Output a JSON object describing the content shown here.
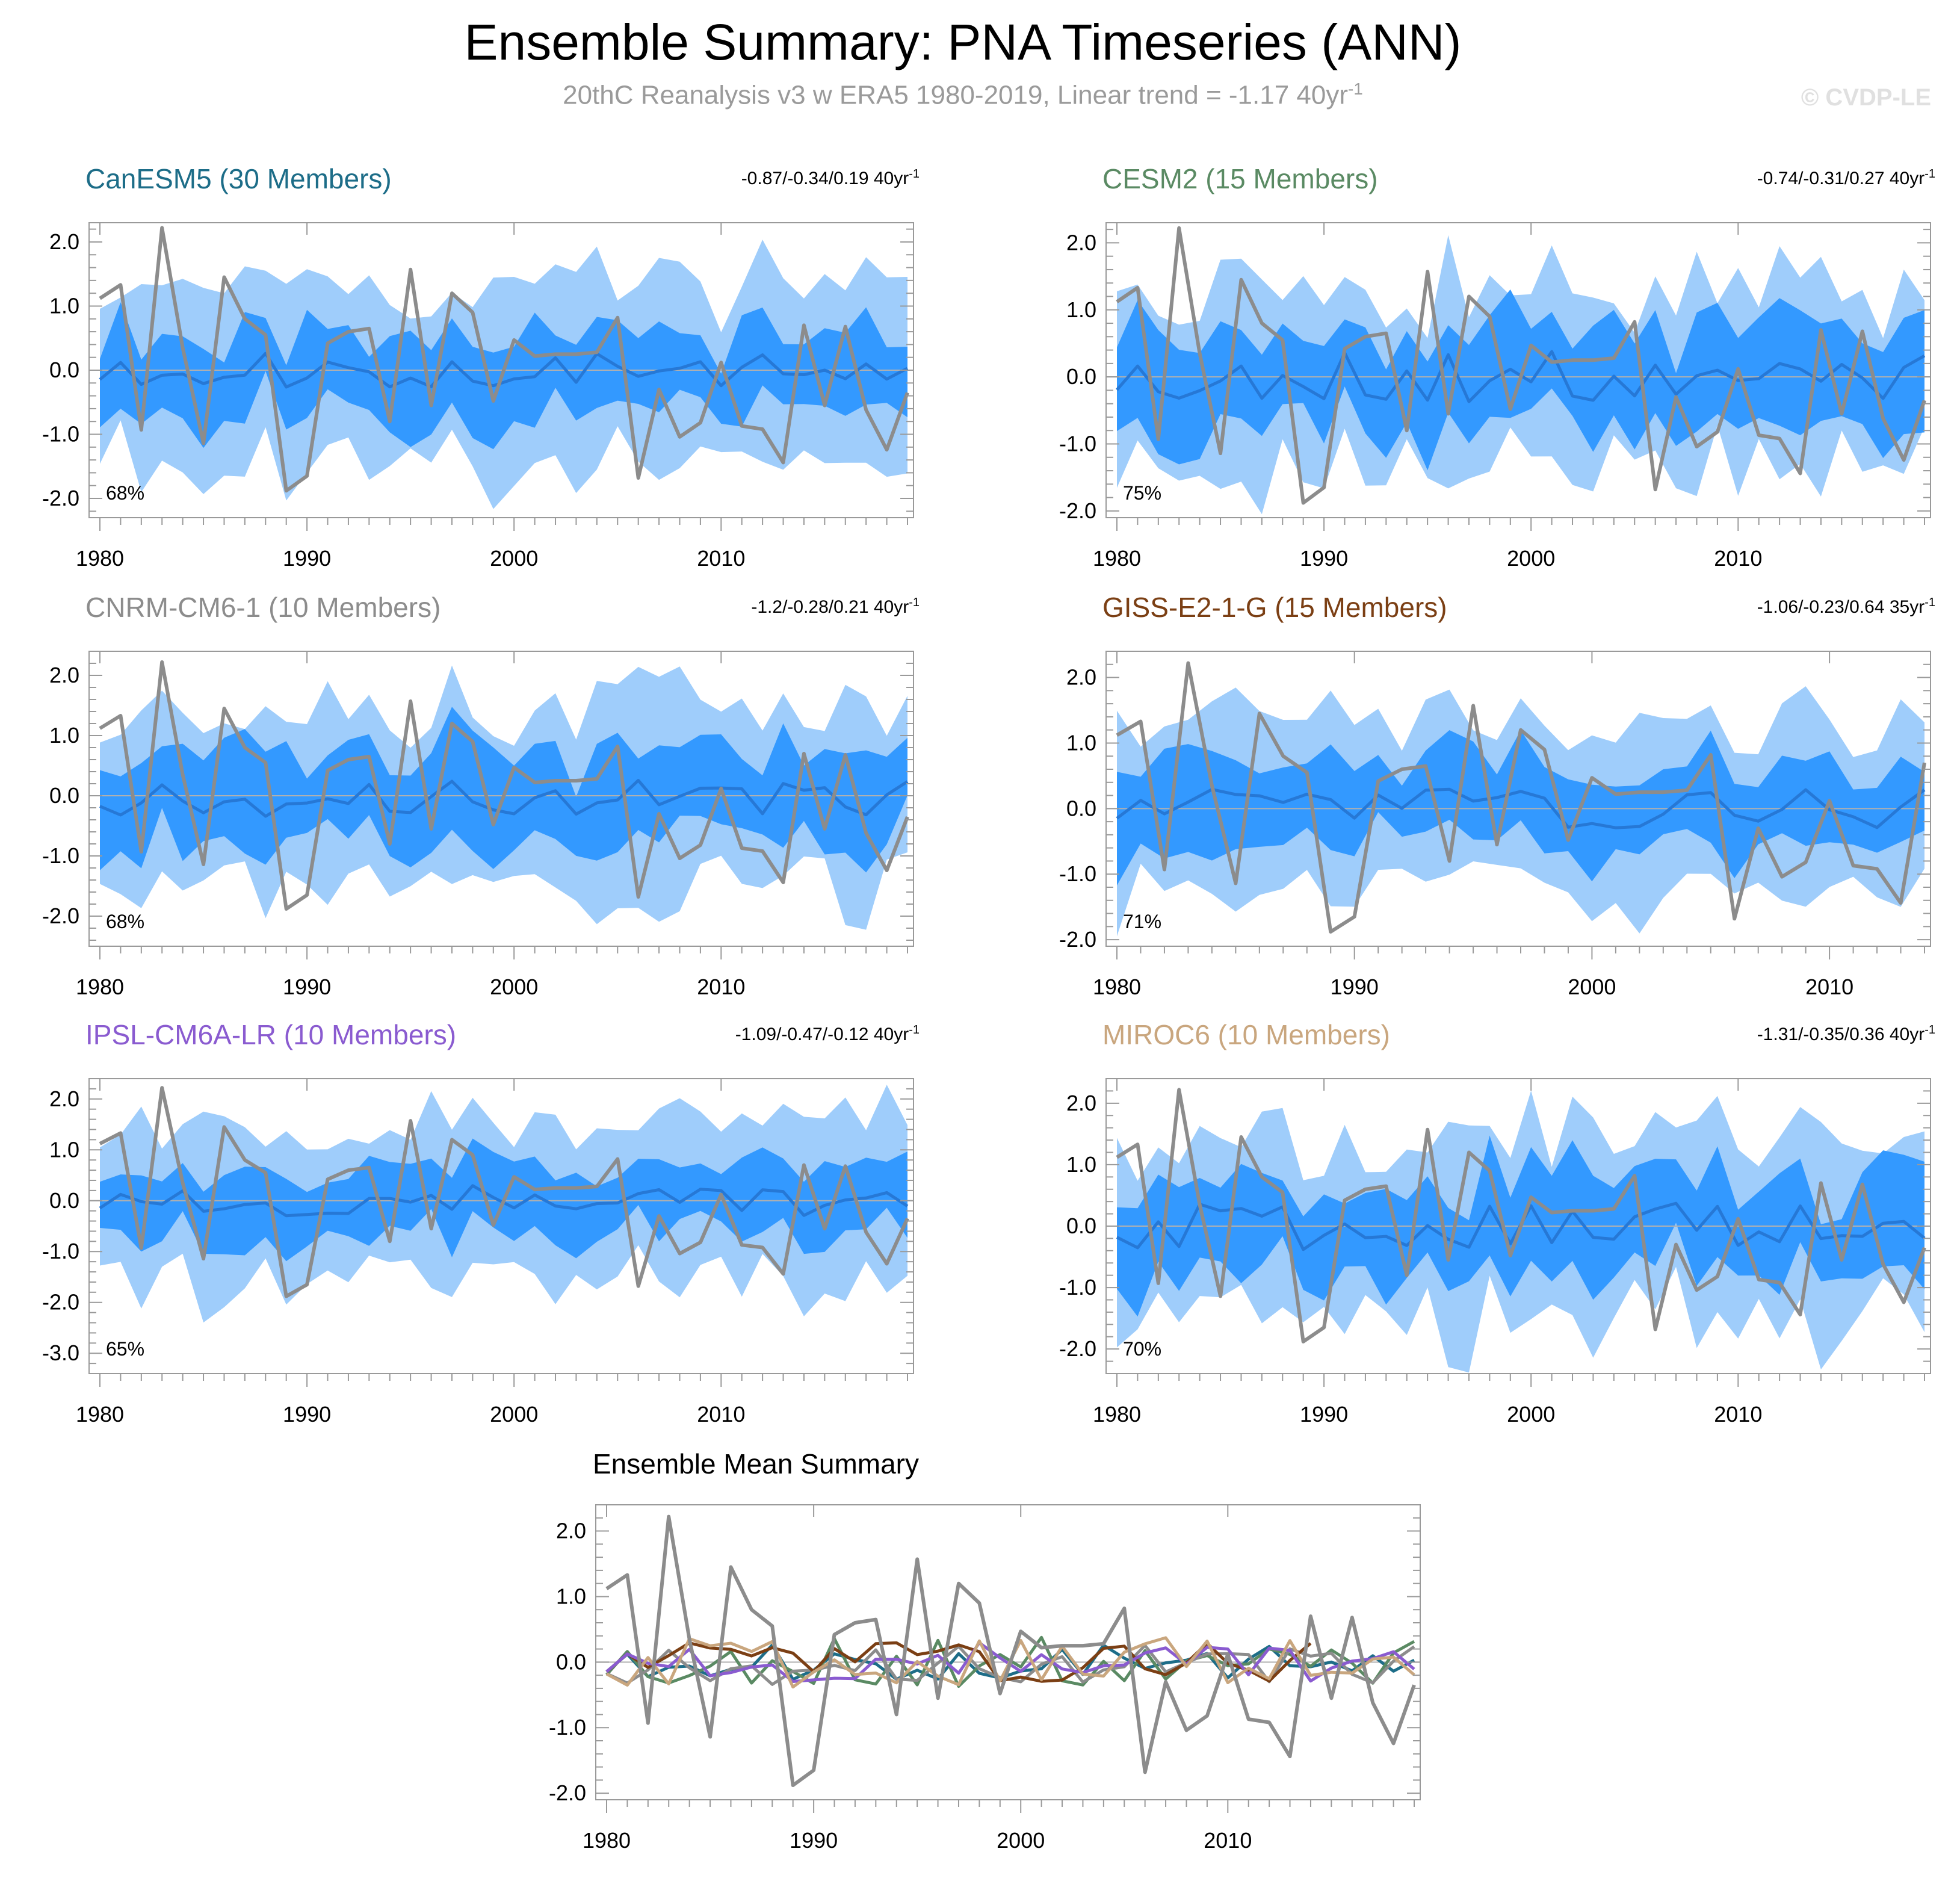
{
  "title": "Ensemble Summary: PNA Timeseries (ANN)",
  "subtitle": "20thC Reanalysis v3 w ERA5 1980-2019, Linear trend = -1.17 40yr",
  "subtitle_sup": "-1",
  "watermark": "© CVDP-LE",
  "colors": {
    "obs": "#8c8c8c",
    "outer_band": "#9fcdfb",
    "inner_band": "#3399ff",
    "ens_mean": "#2678d6",
    "zero_line": "#b0b0b0"
  },
  "chart_data": [
    {
      "type": "area",
      "title": "CanESM5 (30 Members)",
      "title_color": "#1d6d88",
      "trend_text": "-0.87/-0.34/0.19 40yr",
      "trend_sup": "-1",
      "percent_label": "68%",
      "x_range": [
        1980,
        2019
      ],
      "ylim": [
        -2.3,
        2.3
      ],
      "yticks": [
        2.0,
        1.0,
        0.0,
        -1.0,
        -2.0
      ],
      "ytick_labels": [
        "2.0",
        "1.0",
        "0.0",
        "-1.0",
        "-2.0"
      ],
      "xticks": [
        1980,
        1990,
        2000,
        2010
      ],
      "xtick_labels": [
        "1980",
        "1990",
        "2000",
        "2010"
      ],
      "mean_amp": 0.28,
      "inner_width": 0.65,
      "outer_width": 1.35,
      "seed": 11
    },
    {
      "type": "area",
      "title": "CESM2 (15 Members)",
      "title_color": "#5a8a63",
      "trend_text": "-0.74/-0.31/0.27 40yr",
      "trend_sup": "-1",
      "percent_label": "75%",
      "x_range": [
        1980,
        2019
      ],
      "ylim": [
        -2.1,
        2.3
      ],
      "yticks": [
        2.0,
        1.0,
        0.0,
        -1.0,
        -2.0
      ],
      "ytick_labels": [
        "2.0",
        "1.0",
        "0.0",
        "-1.0",
        "-2.0"
      ],
      "xticks": [
        1980,
        1990,
        2000,
        2010
      ],
      "xtick_labels": [
        "1980",
        "1990",
        "2000",
        "2010"
      ],
      "mean_amp": 0.38,
      "inner_width": 0.7,
      "outer_width": 1.4,
      "seed": 23
    },
    {
      "type": "area",
      "title": "CNRM-CM6-1 (10 Members)",
      "title_color": "#8c8c8c",
      "trend_text": "-1.2/-0.28/0.21 40yr",
      "trend_sup": "-1",
      "percent_label": "68%",
      "x_range": [
        1980,
        2019
      ],
      "ylim": [
        -2.5,
        2.4
      ],
      "yticks": [
        2.0,
        1.0,
        0.0,
        -1.0,
        -2.0
      ],
      "ytick_labels": [
        "2.0",
        "1.0",
        "0.0",
        "-1.0",
        "-2.0"
      ],
      "xticks": [
        1980,
        1990,
        2000,
        2010
      ],
      "xtick_labels": [
        "1980",
        "1990",
        "2000",
        "2010"
      ],
      "mean_amp": 0.35,
      "inner_width": 0.75,
      "outer_width": 1.55,
      "seed": 37
    },
    {
      "type": "area",
      "title": "GISS-E2-1-G (15 Members)",
      "title_color": "#7b3f14",
      "trend_text": "-1.06/-0.23/0.64 35yr",
      "trend_sup": "-1",
      "percent_label": "71%",
      "x_range": [
        1980,
        2014
      ],
      "ylim": [
        -2.1,
        2.4
      ],
      "yticks": [
        2.0,
        1.0,
        0.0,
        -1.0,
        -2.0
      ],
      "ytick_labels": [
        "2.0",
        "1.0",
        "0.0",
        "-1.0",
        "-2.0"
      ],
      "xticks": [
        1980,
        1990,
        2000,
        2010
      ],
      "xtick_labels": [
        "1980",
        "1990",
        "2000",
        "2010"
      ],
      "mean_amp": 0.3,
      "inner_width": 0.62,
      "outer_width": 1.35,
      "seed": 41
    },
    {
      "type": "area",
      "title": "IPSL-CM6A-LR (10 Members)",
      "title_color": "#8a5bd0",
      "trend_text": "-1.09/-0.47/-0.12 40yr",
      "trend_sup": "-1",
      "percent_label": "65%",
      "x_range": [
        1980,
        2019
      ],
      "ylim": [
        -3.4,
        2.4
      ],
      "yticks": [
        2.0,
        1.0,
        0.0,
        -1.0,
        -2.0,
        -3.0
      ],
      "ytick_labels": [
        "2.0",
        "1.0",
        "0.0",
        "-1.0",
        "-2.0",
        "-3.0"
      ],
      "xticks": [
        1980,
        1990,
        2000,
        2010
      ],
      "xtick_labels": [
        "1980",
        "1990",
        "2000",
        "2010"
      ],
      "mean_amp": 0.3,
      "inner_width": 0.68,
      "outer_width": 1.6,
      "seed": 53
    },
    {
      "type": "area",
      "title": "MIROC6 (10 Members)",
      "title_color": "#c9a67e",
      "trend_text": "-1.31/-0.35/0.36 40yr",
      "trend_sup": "-1",
      "percent_label": "70%",
      "x_range": [
        1980,
        2019
      ],
      "ylim": [
        -2.4,
        2.4
      ],
      "yticks": [
        2.0,
        1.0,
        0.0,
        -1.0,
        -2.0
      ],
      "ytick_labels": [
        "2.0",
        "1.0",
        "0.0",
        "-1.0",
        "-2.0"
      ],
      "xticks": [
        1980,
        1990,
        2000,
        2010
      ],
      "xtick_labels": [
        "1980",
        "1990",
        "2000",
        "2010"
      ],
      "mean_amp": 0.38,
      "inner_width": 0.75,
      "outer_width": 1.5,
      "seed": 67
    },
    {
      "type": "line",
      "title": "Ensemble Mean Summary",
      "title_color": "#000000",
      "x_range": [
        1980,
        2019
      ],
      "ylim": [
        -2.1,
        2.4
      ],
      "yticks": [
        2.0,
        1.0,
        0.0,
        -1.0,
        -2.0
      ],
      "ytick_labels": [
        "2.0",
        "1.0",
        "0.0",
        "-1.0",
        "-2.0"
      ],
      "xticks": [
        1980,
        1990,
        2000,
        2010
      ],
      "xtick_labels": [
        "1980",
        "1990",
        "2000",
        "2010"
      ]
    }
  ],
  "observations": {
    "name": "20thC Reanalysis v3 w ERA5",
    "years": [
      1980,
      1981,
      1982,
      1983,
      1984,
      1985,
      1986,
      1987,
      1988,
      1989,
      1990,
      1991,
      1992,
      1993,
      1994,
      1995,
      1996,
      1997,
      1998,
      1999,
      2000,
      2001,
      2002,
      2003,
      2004,
      2005,
      2006,
      2007,
      2008,
      2009,
      2010,
      2011,
      2012,
      2013,
      2014,
      2015,
      2016,
      2017,
      2018,
      2019
    ],
    "values": [
      1.12,
      1.33,
      -0.93,
      2.22,
      0.35,
      -1.14,
      1.45,
      0.8,
      0.55,
      -1.88,
      -1.65,
      0.42,
      0.6,
      0.65,
      -0.8,
      1.57,
      -0.55,
      1.2,
      0.9,
      -0.48,
      0.47,
      0.22,
      0.25,
      0.25,
      0.28,
      0.82,
      -1.68,
      -0.3,
      -1.04,
      -0.82,
      0.12,
      -0.87,
      -0.92,
      -1.44,
      0.7,
      -0.55,
      0.68,
      -0.62,
      -1.24,
      -0.35
    ]
  }
}
